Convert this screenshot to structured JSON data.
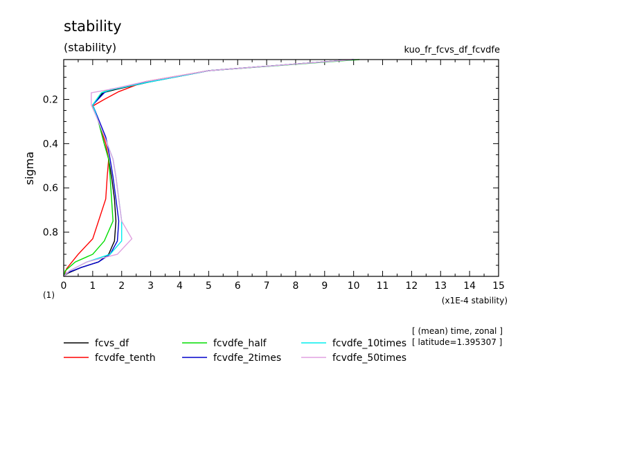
{
  "chart_data": {
    "type": "line",
    "title": "stability",
    "subtitle": "(stability)",
    "experiment": "kuo_fr_fcvs_df_fcvdfe",
    "ylabel": "sigma",
    "xlabel": "(x1E-4 stability)",
    "y_unit": "(1)",
    "xlim": [
      0,
      15
    ],
    "ylim": [
      1.0,
      0.02
    ],
    "x_ticks": [
      "0",
      "1",
      "2",
      "3",
      "4",
      "5",
      "6",
      "7",
      "8",
      "9",
      "10",
      "11",
      "12",
      "13",
      "14",
      "15"
    ],
    "y_ticks": [
      "0.2",
      "0.4",
      "0.6",
      "0.8"
    ],
    "info_line1": "[ (mean) time, zonal ]",
    "info_line2": "[ latitude=1.395307 ]",
    "series": [
      {
        "name": "fcvs_df",
        "color": "#000000",
        "x": [
          10.0,
          5.0,
          3.0,
          1.8,
          1.35,
          1.0,
          1.2,
          1.4,
          1.55,
          1.65,
          1.75,
          1.8,
          1.75,
          1.55,
          1.2,
          0.6,
          0.15,
          0.0
        ],
        "y": [
          0.02,
          0.07,
          0.12,
          0.155,
          0.17,
          0.225,
          0.3,
          0.4,
          0.47,
          0.55,
          0.65,
          0.75,
          0.84,
          0.9,
          0.935,
          0.96,
          0.985,
          1.0
        ]
      },
      {
        "name": "fcvdfe_tenth",
        "color": "#ff0000",
        "x": [
          10.0,
          5.0,
          2.8,
          1.9,
          1.4,
          1.0,
          1.2,
          1.45,
          1.55,
          1.5,
          1.45,
          1.0,
          0.5,
          0.1,
          0.0
        ],
        "y": [
          0.02,
          0.07,
          0.12,
          0.165,
          0.2,
          0.23,
          0.3,
          0.4,
          0.47,
          0.55,
          0.65,
          0.83,
          0.9,
          0.965,
          1.0
        ]
      },
      {
        "name": "fcvdfe_half",
        "color": "#00dd00",
        "x": [
          10.2,
          5.0,
          3.0,
          1.6,
          1.3,
          1.0,
          1.2,
          1.4,
          1.55,
          1.6,
          1.65,
          1.7,
          1.4,
          1.0,
          0.4,
          0.05,
          0.0
        ],
        "y": [
          0.02,
          0.07,
          0.12,
          0.155,
          0.17,
          0.225,
          0.3,
          0.4,
          0.47,
          0.55,
          0.65,
          0.75,
          0.84,
          0.9,
          0.935,
          0.975,
          1.0
        ]
      },
      {
        "name": "fcvdfe_2times",
        "color": "#0000cc",
        "x": [
          10.0,
          5.0,
          3.0,
          1.6,
          1.4,
          1.0,
          1.45,
          1.5,
          1.6,
          1.7,
          1.8,
          1.9,
          1.85,
          1.6,
          1.2,
          0.6,
          0.1,
          0.0
        ],
        "y": [
          0.02,
          0.07,
          0.12,
          0.155,
          0.17,
          0.225,
          0.37,
          0.4,
          0.47,
          0.55,
          0.65,
          0.75,
          0.84,
          0.9,
          0.935,
          0.96,
          0.985,
          1.0
        ]
      },
      {
        "name": "fcvdfe_10times",
        "color": "#00eeee",
        "x": [
          10.0,
          5.0,
          3.0,
          1.7,
          1.3,
          1.0,
          1.2,
          1.5,
          1.7,
          1.8,
          1.9,
          2.0,
          2.0,
          1.6,
          0.8,
          0.2,
          0.0
        ],
        "y": [
          0.02,
          0.07,
          0.12,
          0.155,
          0.17,
          0.225,
          0.3,
          0.4,
          0.47,
          0.55,
          0.65,
          0.75,
          0.84,
          0.9,
          0.935,
          0.975,
          1.0
        ]
      },
      {
        "name": "fcvdfe_50times",
        "color": "#e0a0e0",
        "x": [
          10.0,
          5.0,
          2.8,
          1.6,
          0.95,
          0.95,
          1.2,
          1.5,
          1.7,
          1.8,
          1.9,
          2.0,
          2.35,
          1.85,
          0.8,
          0.2,
          0.0
        ],
        "y": [
          0.02,
          0.07,
          0.12,
          0.155,
          0.17,
          0.225,
          0.3,
          0.4,
          0.47,
          0.55,
          0.65,
          0.75,
          0.83,
          0.9,
          0.935,
          0.975,
          1.0
        ]
      }
    ]
  }
}
